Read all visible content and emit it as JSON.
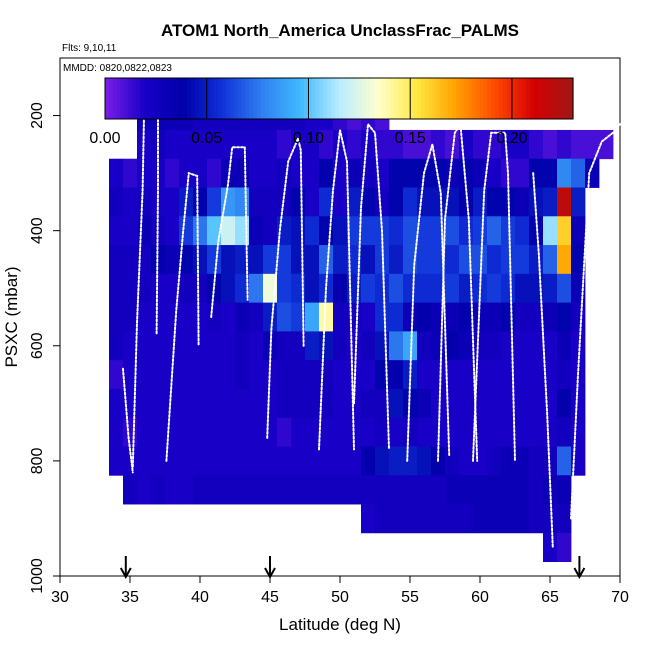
{
  "chart_data": {
    "type": "heatmap",
    "title": "ATOM1 North_America UnclassFrac_PALMS",
    "flights_label": "Flts: 9,10,11",
    "dates_label": "MMDD: 0820,0822,0823",
    "xlabel": "Latitude (deg N)",
    "ylabel": "PSXC (mbar)",
    "xlim": [
      30,
      70
    ],
    "ylim": [
      1000,
      100
    ],
    "x_ticks": [
      30,
      35,
      40,
      45,
      50,
      55,
      60,
      65,
      70
    ],
    "y_ticks": [
      200,
      400,
      600,
      800,
      1000
    ],
    "colorbar": {
      "range": [
        0,
        0.23
      ],
      "ticks": [
        0.0,
        0.05,
        0.1,
        0.15,
        0.2
      ],
      "tick_labels": [
        "0.00",
        "0.05",
        "0.10",
        "0.15",
        "0.20"
      ],
      "colors": [
        "#7b1fe8",
        "#1a00c8",
        "#0000a8",
        "#1030d8",
        "#2f7ef0",
        "#3fb8ff",
        "#b8ecff",
        "#ffffd0",
        "#ffe840",
        "#ffa000",
        "#ff4a00",
        "#d40000",
        "#a01818"
      ]
    },
    "lat_bins": [
      34,
      35,
      36,
      37,
      38,
      39,
      40,
      41,
      42,
      43,
      44,
      45,
      46,
      47,
      48,
      49,
      50,
      51,
      52,
      53,
      54,
      55,
      56,
      57,
      58,
      59,
      60,
      61,
      62,
      63,
      64,
      65,
      66,
      67,
      68,
      69
    ],
    "pressure_bins": [
      200,
      250,
      300,
      350,
      400,
      450,
      500,
      550,
      600,
      650,
      700,
      750,
      800,
      850,
      900,
      950
    ],
    "values": [
      [
        null,
        null,
        0.03,
        0.03,
        0.03,
        0.03,
        0.025,
        0.025,
        0.025,
        0.025,
        0.025,
        0.025,
        0.025,
        0.025,
        0.02,
        0.02,
        0.015,
        0.01,
        0.015,
        0.01,
        null,
        null,
        null,
        null,
        null,
        null,
        null,
        null,
        null,
        null,
        null,
        null,
        null,
        null,
        null,
        null
      ],
      [
        null,
        null,
        0.02,
        0.025,
        0.02,
        0.02,
        0.02,
        0.02,
        0.02,
        0.02,
        0.02,
        0.02,
        0.015,
        0.02,
        0.02,
        0.015,
        0.02,
        0.015,
        0.02,
        0.015,
        0.015,
        0.01,
        0.01,
        0.015,
        0.01,
        0.02,
        0.015,
        0.015,
        0.02,
        0.02,
        0.015,
        0.01,
        0.015,
        0.01,
        0.01,
        0.01
      ],
      [
        0.02,
        0.015,
        0.02,
        0.02,
        0.015,
        0.02,
        0.02,
        0.015,
        0.03,
        0.03,
        0.02,
        0.02,
        0.025,
        0.02,
        0.02,
        0.035,
        0.02,
        0.03,
        0.025,
        0.02,
        0.04,
        0.04,
        0.04,
        0.04,
        0.03,
        0.035,
        0.03,
        0.02,
        0.015,
        0.015,
        0.04,
        0.04,
        0.08,
        0.07,
        0.03,
        null
      ],
      [
        0.025,
        0.02,
        0.025,
        0.02,
        0.02,
        0.05,
        0.04,
        0.06,
        0.085,
        0.08,
        0.025,
        0.025,
        0.025,
        0.04,
        0.02,
        0.055,
        0.02,
        0.05,
        0.04,
        0.025,
        0.04,
        0.055,
        0.045,
        0.045,
        0.045,
        0.035,
        0.05,
        0.04,
        0.04,
        0.03,
        0.045,
        0.05,
        0.22,
        0.05,
        null,
        null
      ],
      [
        0.02,
        0.02,
        0.03,
        0.025,
        0.02,
        0.06,
        0.075,
        0.1,
        0.12,
        0.11,
        0.03,
        0.025,
        0.05,
        0.045,
        0.055,
        0.04,
        0.045,
        0.06,
        0.06,
        0.06,
        0.055,
        0.065,
        0.06,
        0.06,
        0.065,
        0.055,
        0.06,
        0.07,
        0.06,
        0.055,
        0.04,
        0.11,
        0.16,
        0.03,
        null,
        null
      ],
      [
        0.025,
        0.025,
        0.025,
        0.035,
        0.03,
        0.04,
        0.045,
        0.06,
        0.045,
        0.05,
        0.045,
        0.06,
        0.06,
        0.045,
        0.045,
        0.07,
        0.05,
        0.055,
        0.045,
        0.06,
        0.05,
        0.065,
        0.06,
        0.06,
        0.055,
        0.065,
        0.065,
        0.055,
        0.06,
        0.06,
        0.05,
        0.07,
        0.17,
        0.04,
        null,
        null
      ],
      [
        0.025,
        0.025,
        0.025,
        0.02,
        0.02,
        0.025,
        0.025,
        0.04,
        0.045,
        0.055,
        0.075,
        0.13,
        0.06,
        0.055,
        0.045,
        0.055,
        0.035,
        0.05,
        0.06,
        0.055,
        0.065,
        0.055,
        0.055,
        0.055,
        0.06,
        0.05,
        0.055,
        0.06,
        0.055,
        0.045,
        0.045,
        0.05,
        0.065,
        0.03,
        null,
        null
      ],
      [
        0.025,
        0.025,
        0.02,
        0.02,
        0.02,
        0.02,
        0.02,
        0.025,
        0.02,
        0.03,
        0.025,
        0.05,
        0.065,
        0.06,
        0.09,
        0.14,
        0.025,
        0.025,
        0.02,
        0.055,
        0.055,
        0.03,
        0.035,
        0.03,
        0.03,
        0.035,
        0.03,
        0.03,
        0.04,
        0.025,
        0.025,
        0.03,
        0.04,
        0.025,
        null,
        null
      ],
      [
        0.025,
        0.02,
        0.02,
        0.02,
        0.02,
        0.02,
        0.02,
        0.02,
        0.02,
        0.025,
        0.02,
        0.03,
        0.025,
        0.025,
        0.05,
        0.045,
        0.025,
        0.02,
        0.025,
        0.045,
        0.075,
        0.09,
        0.025,
        0.03,
        0.035,
        0.03,
        0.025,
        0.025,
        0.02,
        0.02,
        0.02,
        0.02,
        0.03,
        0.02,
        null,
        null
      ],
      [
        0.015,
        0.02,
        0.02,
        0.02,
        0.02,
        0.02,
        0.02,
        0.02,
        0.02,
        0.025,
        0.02,
        0.02,
        0.025,
        0.025,
        0.025,
        0.025,
        0.02,
        0.02,
        0.02,
        0.04,
        0.035,
        0.05,
        0.02,
        0.02,
        0.02,
        0.02,
        0.02,
        0.02,
        0.02,
        0.02,
        0.02,
        0.02,
        0.025,
        0.02,
        null,
        null
      ],
      [
        0.02,
        0.02,
        0.02,
        0.02,
        0.02,
        0.02,
        0.02,
        0.02,
        0.02,
        0.02,
        0.02,
        0.02,
        0.025,
        0.025,
        0.025,
        0.025,
        0.02,
        0.02,
        0.025,
        0.025,
        0.045,
        0.04,
        0.03,
        0.02,
        0.02,
        0.02,
        0.02,
        0.02,
        0.02,
        0.02,
        0.02,
        0.02,
        0.035,
        0.02,
        null,
        null
      ],
      [
        0.02,
        0.015,
        0.02,
        0.02,
        0.02,
        0.02,
        0.02,
        0.02,
        0.02,
        0.02,
        0.02,
        0.02,
        0.015,
        0.02,
        0.02,
        0.02,
        0.02,
        0.02,
        0.02,
        0.025,
        0.02,
        0.025,
        0.02,
        0.02,
        0.02,
        0.02,
        0.02,
        0.02,
        0.02,
        0.02,
        0.02,
        0.02,
        0.025,
        0.02,
        null,
        null
      ],
      [
        0.02,
        0.02,
        0.02,
        0.02,
        0.02,
        0.02,
        0.02,
        0.02,
        0.02,
        0.02,
        0.02,
        0.02,
        0.02,
        0.02,
        0.02,
        0.02,
        0.02,
        0.02,
        0.035,
        0.045,
        0.05,
        0.05,
        0.045,
        0.035,
        0.025,
        0.02,
        0.02,
        0.025,
        0.03,
        0.03,
        0.025,
        0.025,
        0.07,
        0.02,
        null,
        null
      ],
      [
        null,
        0.025,
        0.02,
        0.025,
        0.02,
        0.02,
        0.025,
        0.025,
        0.025,
        0.025,
        0.025,
        0.025,
        0.025,
        0.025,
        0.025,
        0.025,
        0.025,
        0.025,
        0.025,
        0.025,
        0.025,
        0.025,
        0.025,
        0.025,
        0.03,
        0.03,
        0.03,
        0.03,
        0.03,
        0.03,
        0.025,
        0.03,
        0.03,
        null,
        null,
        null
      ],
      [
        null,
        null,
        null,
        null,
        null,
        null,
        null,
        null,
        null,
        null,
        null,
        null,
        null,
        null,
        null,
        null,
        null,
        null,
        0.02,
        0.025,
        0.025,
        0.025,
        0.025,
        0.025,
        0.025,
        0.025,
        0.03,
        0.03,
        0.03,
        0.03,
        0.025,
        0.025,
        0.025,
        null,
        null,
        null
      ],
      [
        null,
        null,
        null,
        null,
        null,
        null,
        null,
        null,
        null,
        null,
        null,
        null,
        null,
        null,
        null,
        null,
        null,
        null,
        null,
        null,
        null,
        null,
        null,
        null,
        null,
        null,
        null,
        null,
        null,
        null,
        null,
        0.02,
        0.015,
        null,
        null,
        null
      ]
    ],
    "flight_tracks": [
      {
        "name": "track-ascent-35",
        "points": [
          [
            34.5,
            640
          ],
          [
            34.9,
            760
          ],
          [
            35.2,
            820
          ]
        ]
      },
      {
        "name": "track-35-37",
        "points": [
          [
            35.2,
            810
          ],
          [
            35.5,
            560
          ],
          [
            35.9,
            330
          ],
          [
            36.0,
            200
          ],
          [
            36.2,
            185
          ],
          [
            37.0,
            185
          ],
          [
            37.0,
            330
          ],
          [
            36.9,
            580
          ]
        ]
      },
      {
        "name": "track-37-40",
        "points": [
          [
            37.6,
            800
          ],
          [
            38.3,
            540
          ],
          [
            38.8,
            400
          ],
          [
            39.2,
            300
          ],
          [
            39.8,
            305
          ],
          [
            39.9,
            600
          ]
        ]
      },
      {
        "name": "track-41-43",
        "points": [
          [
            40.8,
            550
          ],
          [
            41.3,
            420
          ],
          [
            42.0,
            320
          ],
          [
            42.3,
            255
          ],
          [
            43.2,
            255
          ],
          [
            43.4,
            520
          ]
        ]
      },
      {
        "name": "track-44-47",
        "points": [
          [
            44.8,
            760
          ],
          [
            45.1,
            570
          ],
          [
            45.7,
            400
          ],
          [
            46.3,
            280
          ],
          [
            47.0,
            240
          ],
          [
            47.2,
            260
          ],
          [
            47.4,
            600
          ]
        ]
      },
      {
        "name": "track-49-51",
        "points": [
          [
            48.5,
            780
          ],
          [
            49.0,
            500
          ],
          [
            49.5,
            330
          ],
          [
            50.0,
            225
          ],
          [
            50.5,
            280
          ],
          [
            51.0,
            780
          ]
        ]
      },
      {
        "name": "track-51-54",
        "points": [
          [
            51.0,
            700
          ],
          [
            51.5,
            360
          ],
          [
            52.0,
            215
          ],
          [
            52.5,
            230
          ],
          [
            53.0,
            400
          ],
          [
            53.5,
            780
          ]
        ]
      },
      {
        "name": "track-55-57",
        "points": [
          [
            54.8,
            800
          ],
          [
            55.3,
            460
          ],
          [
            56.0,
            300
          ],
          [
            56.6,
            250
          ],
          [
            57.2,
            335
          ],
          [
            57.8,
            790
          ]
        ]
      },
      {
        "name": "track-57-60",
        "points": [
          [
            57.0,
            800
          ],
          [
            57.5,
            380
          ],
          [
            58.2,
            230
          ],
          [
            58.6,
            215
          ],
          [
            59.2,
            380
          ],
          [
            59.8,
            800
          ]
        ]
      },
      {
        "name": "track-60-62",
        "points": [
          [
            59.5,
            800
          ],
          [
            60.3,
            330
          ],
          [
            60.8,
            230
          ],
          [
            61.8,
            230
          ],
          [
            62.0,
            300
          ],
          [
            62.5,
            800
          ]
        ]
      },
      {
        "name": "track-64-66",
        "points": [
          [
            63.8,
            300
          ],
          [
            64.2,
            440
          ],
          [
            64.8,
            720
          ],
          [
            65.2,
            950
          ]
        ]
      },
      {
        "name": "track-66-70",
        "points": [
          [
            66.5,
            900
          ],
          [
            67.0,
            650
          ],
          [
            67.8,
            300
          ],
          [
            68.7,
            245
          ],
          [
            69.5,
            230
          ],
          [
            70.0,
            215
          ]
        ]
      }
    ],
    "arrows_at_latitude": [
      34.7,
      45.0,
      67.1
    ]
  }
}
